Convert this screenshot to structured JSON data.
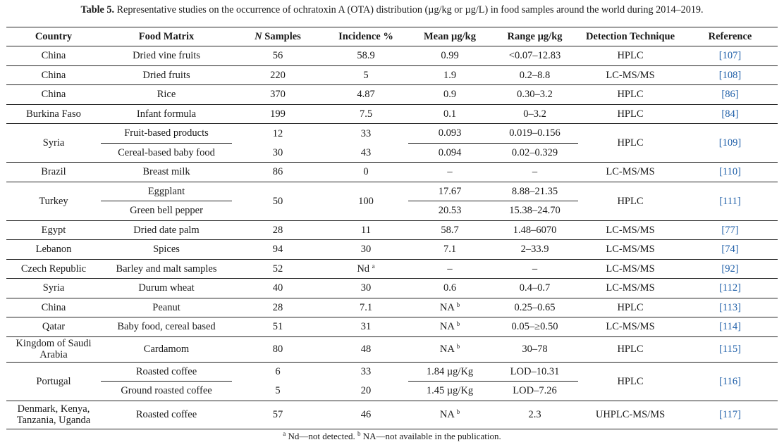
{
  "caption": {
    "label": "Table 5.",
    "text": "Representative studies on the occurrence of ochratoxin A (OTA) distribution (µg/kg or µg/L) in food samples around the world during 2014–2019."
  },
  "headers": [
    "Country",
    "Food Matrix",
    "N Samples",
    "Incidence %",
    "Mean µg/kg",
    "Range µg/kg",
    "Detection Technique",
    "Reference"
  ],
  "headers_n": {
    "n": "N",
    "rest": " Samples"
  },
  "rows": {
    "china1": {
      "country": "China",
      "matrix": "Dried vine fruits",
      "n": "56",
      "inc": "58.9",
      "mean": "0.99",
      "range": "<0.07–12.83",
      "tech": "HPLC",
      "ref": "[107]"
    },
    "china2": {
      "country": "China",
      "matrix": "Dried fruits",
      "n": "220",
      "inc": "5",
      "mean": "1.9",
      "range": "0.2–8.8",
      "tech": "LC-MS/MS",
      "ref": "[108]"
    },
    "china3": {
      "country": "China",
      "matrix": "Rice",
      "n": "370",
      "inc": "4.87",
      "mean": "0.9",
      "range": "0.30–3.2",
      "tech": "HPLC",
      "ref": "[86]"
    },
    "burkina": {
      "country": "Burkina Faso",
      "matrix": "Infant formula",
      "n": "199",
      "inc": "7.5",
      "mean": "0.1",
      "range": "0–3.2",
      "tech": "HPLC",
      "ref": "[84]"
    },
    "syria1": {
      "country": "Syria",
      "tech": "HPLC",
      "ref": "[109]",
      "sub": [
        {
          "matrix": "Fruit-based products",
          "n": "12",
          "inc": "33",
          "mean": "0.093",
          "range": "0.019–0.156"
        },
        {
          "matrix": "Cereal-based baby food",
          "n": "30",
          "inc": "43",
          "mean": "0.094",
          "range": "0.02–0.329"
        }
      ]
    },
    "brazil": {
      "country": "Brazil",
      "matrix": "Breast milk",
      "n": "86",
      "inc": "0",
      "mean": "–",
      "range": "–",
      "tech": "LC-MS/MS",
      "ref": "[110]"
    },
    "turkey": {
      "country": "Turkey",
      "n": "50",
      "inc": "100",
      "tech": "HPLC",
      "ref": "[111]",
      "sub": [
        {
          "matrix": "Eggplant",
          "mean": "17.67",
          "range": "8.88–21.35"
        },
        {
          "matrix": "Green bell pepper",
          "mean": "20.53",
          "range": "15.38–24.70"
        }
      ]
    },
    "egypt": {
      "country": "Egypt",
      "matrix": "Dried date palm",
      "n": "28",
      "inc": "11",
      "mean": "58.7",
      "range": "1.48–6070",
      "tech": "LC-MS/MS",
      "ref": "[77]"
    },
    "lebanon": {
      "country": "Lebanon",
      "matrix": "Spices",
      "n": "94",
      "inc": "30",
      "mean": "7.1",
      "range": "2–33.9",
      "tech": "LC-MS/MS",
      "ref": "[74]"
    },
    "czech": {
      "country": "Czech Republic",
      "matrix": "Barley and malt samples",
      "n": "52",
      "inc": "Nd",
      "inc_sup": "a",
      "mean": "–",
      "range": "–",
      "tech": "LC-MS/MS",
      "ref": "[92]"
    },
    "syria2": {
      "country": "Syria",
      "matrix": "Durum wheat",
      "n": "40",
      "inc": "30",
      "mean": "0.6",
      "range": "0.4–0.7",
      "tech": "LC-MS/MS",
      "ref": "[112]"
    },
    "china4": {
      "country": "China",
      "matrix": "Peanut",
      "n": "28",
      "inc": "7.1",
      "mean": "NA",
      "mean_sup": "b",
      "range": "0.25–0.65",
      "tech": "HPLC",
      "ref": "[113]"
    },
    "qatar": {
      "country": "Qatar",
      "matrix": "Baby food, cereal based",
      "n": "51",
      "inc": "31",
      "mean": "NA",
      "mean_sup": "b",
      "range": "0.05–≥0.50",
      "tech": "LC-MS/MS",
      "ref": "[114]"
    },
    "saudi": {
      "country": "Kingdom of Saudi Arabia",
      "matrix": "Cardamom",
      "n": "80",
      "inc": "48",
      "mean": "NA",
      "mean_sup": "b",
      "range": "30–78",
      "tech": "HPLC",
      "ref": "[115]"
    },
    "portugal": {
      "country": "Portugal",
      "tech": "HPLC",
      "ref": "[116]",
      "sub": [
        {
          "matrix": "Roasted coffee",
          "n": "6",
          "inc": "33",
          "mean": "1.84 µg/Kg",
          "range": "LOD–10.31"
        },
        {
          "matrix": "Ground roasted coffee",
          "n": "5",
          "inc": "20",
          "mean": "1.45 µg/Kg",
          "range": "LOD–7.26"
        }
      ]
    },
    "denmark": {
      "country": "Denmark, Kenya, Tanzania, Uganda",
      "matrix": "Roasted coffee",
      "n": "57",
      "inc": "46",
      "mean": "NA",
      "mean_sup": "b",
      "range": "2.3",
      "tech": "UHPLC-MS/MS",
      "ref": "[117]"
    }
  },
  "footnote": {
    "a_mark": "a",
    "a_text": " Nd—not detected. ",
    "b_mark": "b",
    "b_text": " NA—not available in the publication."
  }
}
